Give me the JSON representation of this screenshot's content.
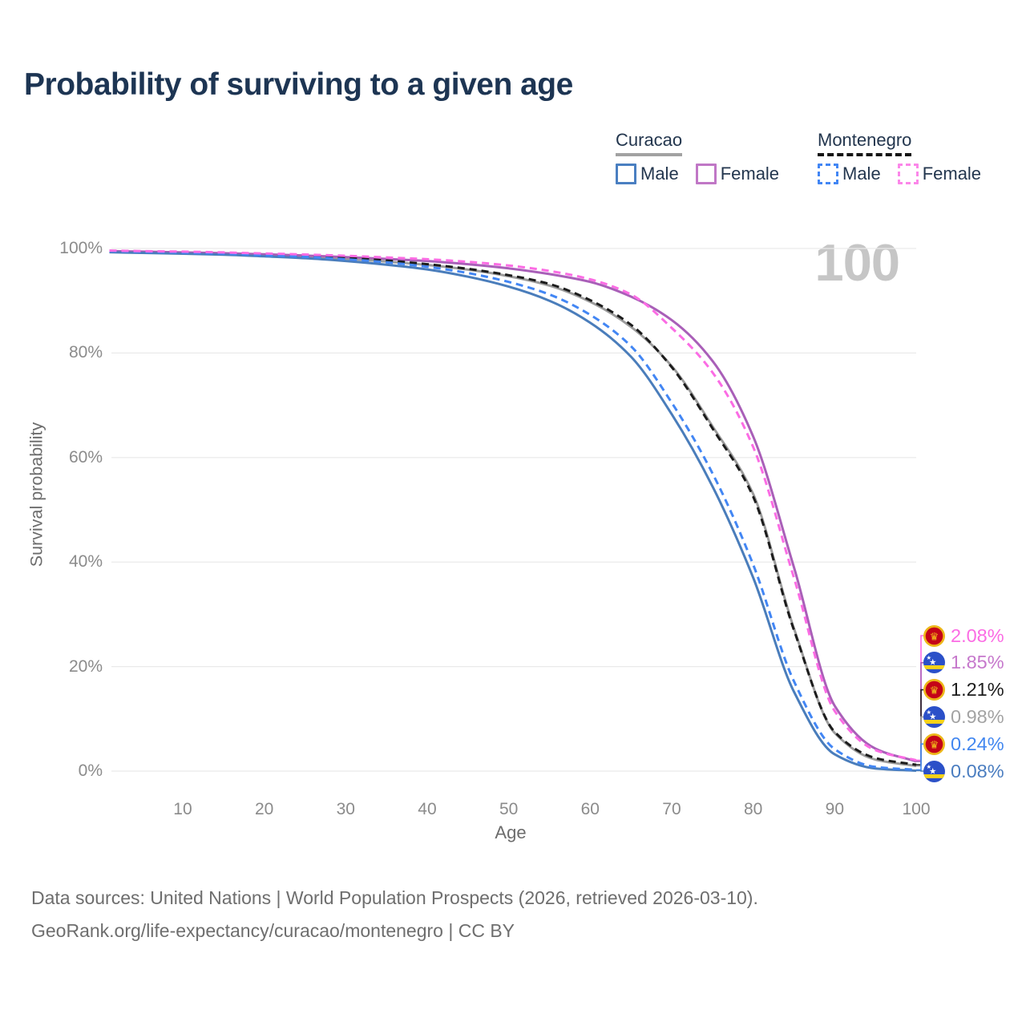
{
  "title": "Probability of surviving to a given age",
  "watermark": "100",
  "legend": {
    "groups": [
      {
        "id": "curacao",
        "country": "Curacao",
        "underline_style": "solid",
        "underline_color": "#a2a2a2",
        "items": [
          {
            "id": "curacao-male",
            "label": "Male",
            "color": "#4a7fc1",
            "dashed": false
          },
          {
            "id": "curacao-female",
            "label": "Female",
            "color": "#c077c6",
            "dashed": false
          }
        ]
      },
      {
        "id": "montenegro",
        "country": "Montenegro",
        "underline_style": "dashed",
        "underline_color": "#141414",
        "items": [
          {
            "id": "montenegro-male",
            "label": "Male",
            "color": "#4286f4",
            "dashed": true
          },
          {
            "id": "montenegro-female",
            "label": "Female",
            "color": "#fb87e9",
            "dashed": true
          }
        ]
      }
    ]
  },
  "chart_data": {
    "type": "line",
    "title": "Probability of surviving to a given age",
    "x_axis": {
      "label": "Age",
      "range": [
        0,
        100
      ],
      "ticks": [
        10,
        20,
        30,
        40,
        50,
        60,
        70,
        80,
        90,
        100
      ]
    },
    "y_axis": {
      "label": "Survival probability",
      "range": [
        0,
        100
      ],
      "ticks": [
        0,
        20,
        40,
        60,
        80,
        100
      ],
      "tick_suffix": "%"
    },
    "grid": "horizontal",
    "x": [
      1,
      5,
      10,
      15,
      20,
      25,
      30,
      35,
      40,
      45,
      50,
      55,
      60,
      65,
      70,
      75,
      80,
      85,
      90,
      95,
      100
    ],
    "series": [
      {
        "id": "curacao-all",
        "name": "Curacao (both sexes)",
        "color": "#9c9c9c",
        "label_color": "#a3a3a3",
        "dashed": false,
        "values": [
          99.45,
          99.35,
          99.2,
          99.0,
          98.75,
          98.45,
          98.05,
          97.5,
          96.85,
          95.95,
          94.7,
          92.9,
          89.8,
          85.0,
          77.5,
          66.0,
          53.0,
          27.3,
          7.3,
          2.2,
          0.98
        ]
      },
      {
        "id": "curacao-female",
        "name": "Curacao Female",
        "color": "#a95fb8",
        "label_color": "#c678cc",
        "dashed": false,
        "values": [
          99.5,
          99.4,
          99.25,
          99.1,
          98.9,
          98.65,
          98.35,
          98.0,
          97.6,
          97.0,
          96.2,
          95.1,
          93.6,
          90.8,
          86.3,
          78.5,
          64.0,
          39.0,
          12.5,
          4.3,
          1.85
        ]
      },
      {
        "id": "curacao-male",
        "name": "Curacao Male",
        "color": "#4a7dbb",
        "label_color": "#4a7dc0",
        "dashed": false,
        "values": [
          99.3,
          99.15,
          99.0,
          98.8,
          98.5,
          98.15,
          97.6,
          96.9,
          96.0,
          94.6,
          92.7,
          90.0,
          85.8,
          79.3,
          68.3,
          54.5,
          37.0,
          15.2,
          3.2,
          0.5,
          0.08
        ]
      },
      {
        "id": "montenegro-all",
        "name": "Montenegro (both sexes)",
        "color": "#1c1c1c",
        "label_color": "#1c1c1c",
        "dashed": true,
        "values": [
          99.55,
          99.45,
          99.3,
          99.1,
          98.85,
          98.55,
          98.2,
          97.7,
          97.0,
          96.1,
          94.9,
          93.2,
          90.1,
          85.4,
          77.3,
          65.6,
          52.5,
          27.0,
          7.5,
          2.5,
          1.21
        ]
      },
      {
        "id": "montenegro-male",
        "name": "Montenegro Male",
        "color": "#4286f4",
        "label_color": "#4287f0",
        "dashed": true,
        "values": [
          99.5,
          99.35,
          99.2,
          99.0,
          98.7,
          98.4,
          97.95,
          97.35,
          96.5,
          95.3,
          93.6,
          91.2,
          87.3,
          81.3,
          70.5,
          57.0,
          39.5,
          17.2,
          4.2,
          0.8,
          0.24
        ]
      },
      {
        "id": "montenegro-female",
        "name": "Montenegro Female",
        "color": "#fb6ce4",
        "label_color": "#fb6ce4",
        "dashed": true,
        "values": [
          99.6,
          99.5,
          99.4,
          99.25,
          99.05,
          98.85,
          98.6,
          98.3,
          97.95,
          97.45,
          96.75,
          95.7,
          94.1,
          91.2,
          84.8,
          76.3,
          62.0,
          37.0,
          11.5,
          4.0,
          2.08
        ]
      }
    ],
    "end_labels": [
      {
        "series": "montenegro-female",
        "flag": "montenegro",
        "text": "2.08%"
      },
      {
        "series": "curacao-female",
        "flag": "curacao",
        "text": "1.85%"
      },
      {
        "series": "montenegro-all",
        "flag": "montenegro",
        "text": "1.21%"
      },
      {
        "series": "curacao-all",
        "flag": "curacao",
        "text": "0.98%"
      },
      {
        "series": "montenegro-male",
        "flag": "montenegro",
        "text": "0.24%"
      },
      {
        "series": "curacao-male",
        "flag": "curacao",
        "text": "0.08%"
      }
    ]
  },
  "footer": {
    "line1": "Data sources: United Nations | World Population Prospects (2026, retrieved 2026-03-10).",
    "line2": "GeoRank.org/life-expectancy/curacao/montenegro | CC BY"
  }
}
